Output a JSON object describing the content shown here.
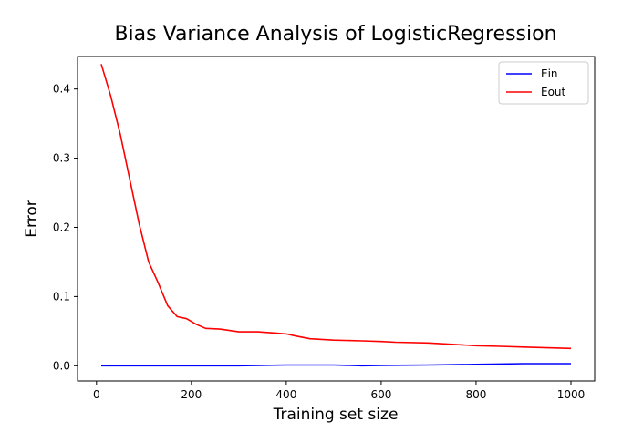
{
  "chart_data": {
    "type": "line",
    "title": "Bias Variance Analysis of LogisticRegression",
    "xlabel": "Training set size",
    "ylabel": "Error",
    "xlim": [
      -40,
      1050
    ],
    "ylim": [
      -0.022,
      0.447
    ],
    "xticks": [
      0,
      200,
      400,
      600,
      800,
      1000
    ],
    "xtick_labels": [
      "0",
      "200",
      "400",
      "600",
      "800",
      "1000"
    ],
    "yticks": [
      0.0,
      0.1,
      0.2,
      0.3,
      0.4
    ],
    "ytick_labels": [
      "0.0",
      "0.1",
      "0.2",
      "0.3",
      "0.4"
    ],
    "grid": false,
    "legend_position": "top-right",
    "series": [
      {
        "name": "Ein",
        "color": "#0000ff",
        "x": [
          10,
          100,
          200,
          300,
          400,
          450,
          500,
          560,
          600,
          700,
          800,
          900,
          1000
        ],
        "y": [
          0.0,
          0.0,
          0.0,
          0.0,
          0.001,
          0.001,
          0.001,
          0.0,
          0.0005,
          0.001,
          0.002,
          0.003,
          0.003
        ]
      },
      {
        "name": "Eout",
        "color": "#ff0000",
        "x": [
          10,
          30,
          50,
          70,
          90,
          110,
          130,
          150,
          170,
          190,
          210,
          230,
          260,
          300,
          340,
          380,
          400,
          420,
          450,
          500,
          560,
          600,
          630,
          700,
          750,
          800,
          850,
          900,
          950,
          1000
        ],
        "y": [
          0.436,
          0.39,
          0.335,
          0.27,
          0.205,
          0.15,
          0.12,
          0.087,
          0.071,
          0.068,
          0.06,
          0.054,
          0.053,
          0.049,
          0.049,
          0.047,
          0.046,
          0.043,
          0.039,
          0.037,
          0.036,
          0.035,
          0.034,
          0.033,
          0.031,
          0.029,
          0.028,
          0.027,
          0.026,
          0.025
        ]
      }
    ]
  }
}
